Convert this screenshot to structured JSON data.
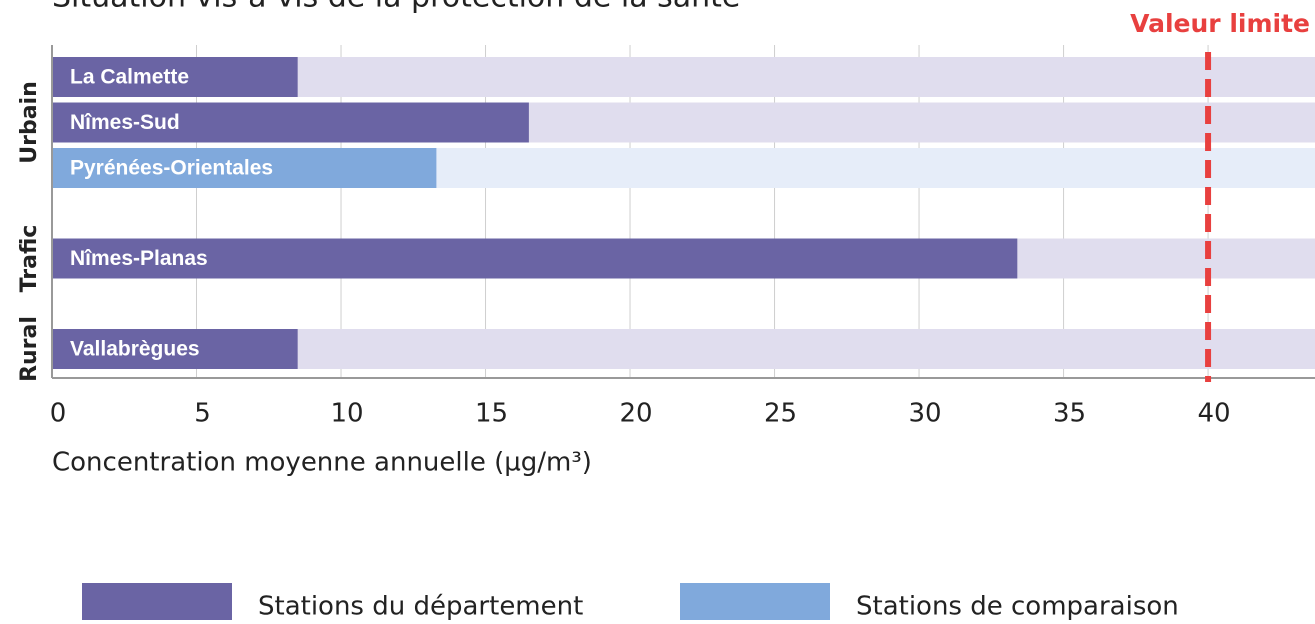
{
  "chart_data": {
    "type": "barh",
    "title": "Situation vis-à-vis de la protection de la santé",
    "x_label": "Concentration moyenne annuelle (µg/m³)",
    "groups": [
      {
        "name": "Urbain",
        "categories": [
          "La Calmette",
          "Nîmes-Sud",
          "Pyrénées-Orientales"
        ]
      },
      {
        "name": "Trafic",
        "categories": [
          "Nîmes-Planas"
        ]
      },
      {
        "name": "Rural",
        "categories": [
          "Vallabrègues"
        ]
      }
    ],
    "series": [
      {
        "name": "Stations du département",
        "color": "#6a64a4",
        "track_color": "#e0ddee",
        "values": [
          8.5,
          16.5,
          null,
          33.4,
          8.5
        ]
      },
      {
        "name": "Stations de comparaison",
        "color": "#80a9dc",
        "track_color": "#e6edf9",
        "values": [
          null,
          null,
          13.3,
          null,
          null
        ]
      }
    ],
    "xlim": [
      0,
      43.7
    ],
    "xticks": [
      0,
      5,
      10,
      15,
      20,
      25,
      30,
      35,
      40
    ],
    "grid": true,
    "reference": {
      "value": 40,
      "label": "Valeur limite",
      "color": "#e8403f"
    },
    "legend": "bottom"
  }
}
